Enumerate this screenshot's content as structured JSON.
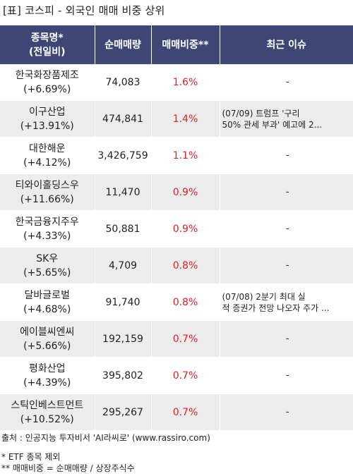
{
  "title": "[표] 코스피 - 외국인 매매 비중 상위",
  "header": {
    "col_name_line1": "종목명*",
    "col_name_line2": "(전일비)",
    "col_qty": "순매매량",
    "col_ratio": "매매비중**",
    "col_issue": "최근 이슈"
  },
  "rows": [
    {
      "name": "한국화장품제조",
      "change": "(+6.69%)",
      "qty": "74,083",
      "ratio": "1.6%",
      "issue1": "-",
      "issue2": ""
    },
    {
      "name": "이구산업",
      "change": "(+13.91%)",
      "qty": "474,841",
      "ratio": "1.4%",
      "issue1": "(07/09) 트럼프 '구리",
      "issue2": "50% 관세 부과' 예고에 2..."
    },
    {
      "name": "대한해운",
      "change": "(+4.12%)",
      "qty": "3,426,759",
      "ratio": "1.1%",
      "issue1": "-",
      "issue2": ""
    },
    {
      "name": "티와이홀딩스우",
      "change": "(+11.66%)",
      "qty": "11,470",
      "ratio": "0.9%",
      "issue1": "-",
      "issue2": ""
    },
    {
      "name": "한국금융지주우",
      "change": "(+4.33%)",
      "qty": "50,881",
      "ratio": "0.9%",
      "issue1": "-",
      "issue2": ""
    },
    {
      "name": "SK우",
      "change": "(+5.65%)",
      "qty": "4,709",
      "ratio": "0.8%",
      "issue1": "-",
      "issue2": ""
    },
    {
      "name": "달바글로벌",
      "change": "(+4.68%)",
      "qty": "91,740",
      "ratio": "0.8%",
      "issue1": "(07/08) 2분기 최대 실",
      "issue2": "적 증권가 전망 나오자 주가 ..."
    },
    {
      "name": "에이블씨엔씨",
      "change": "(+5.66%)",
      "qty": "192,159",
      "ratio": "0.7%",
      "issue1": "-",
      "issue2": ""
    },
    {
      "name": "평화산업",
      "change": "(+4.39%)",
      "qty": "395,802",
      "ratio": "0.7%",
      "issue1": "-",
      "issue2": ""
    },
    {
      "name": "스틱인베스트먼트",
      "change": "(+10.52%)",
      "qty": "295,267",
      "ratio": "0.7%",
      "issue1": "-",
      "issue2": ""
    }
  ],
  "footer": {
    "source": "출처 : 인공지능 투자비서 'AI라씨로' (www.rassiro.com)",
    "note1": "* ETF 종목 제외",
    "note2": "** 매매비중 = 순매매량 / 상장주식수"
  },
  "colors": {
    "header_bg": "#3e4676",
    "ratio_text": "#e02020",
    "even_row_bg": "#ececec"
  }
}
